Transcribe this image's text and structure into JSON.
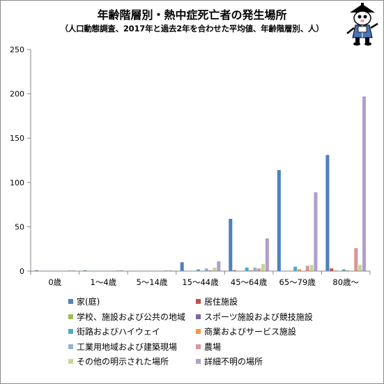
{
  "title": "年齢階層別・熱中症死亡者の発生場所",
  "subtitle": "（人口動態調査、2017年と過去2年を合わせた平均値、年齢階層別、人）",
  "chart_data": {
    "type": "bar",
    "categories": [
      "0歳",
      "1～4歳",
      "5～14歳",
      "15～44歳",
      "45～64歳",
      "65～79歳",
      "80歳～"
    ],
    "ylim": [
      0,
      250
    ],
    "yticks": [
      0,
      50,
      100,
      150,
      200,
      250
    ],
    "grid": false,
    "legend_position": "bottom",
    "series": [
      {
        "name": "家(庭)",
        "color": "#4f81bd",
        "values": [
          1,
          1,
          0.3,
          10,
          59,
          114,
          131
        ]
      },
      {
        "name": "居住施設",
        "color": "#c0504d",
        "values": [
          0,
          0,
          0,
          0.3,
          1,
          0.3,
          3
        ]
      },
      {
        "name": "学校、施設および公共の地域",
        "color": "#9bbb59",
        "values": [
          0,
          0,
          0,
          0,
          0.3,
          0.3,
          0.7
        ]
      },
      {
        "name": "スポーツ施設および競技施設",
        "color": "#8064a2",
        "values": [
          0,
          0,
          0,
          0.3,
          0,
          0,
          0
        ]
      },
      {
        "name": "街路およびハイウェイ",
        "color": "#4bacc6",
        "values": [
          0,
          0,
          0.3,
          2,
          4,
          5,
          2
        ]
      },
      {
        "name": "商業およびサービス施設",
        "color": "#f79646",
        "values": [
          0,
          0,
          0,
          0.3,
          1,
          2,
          0.7
        ]
      },
      {
        "name": "工業用地域および建築現場",
        "color": "#95b3d7",
        "values": [
          0.3,
          0,
          0,
          3,
          4,
          0.3,
          0
        ]
      },
      {
        "name": "農場",
        "color": "#da9694",
        "values": [
          0,
          0,
          0,
          1,
          3,
          6,
          26
        ]
      },
      {
        "name": "その他の明示された場所",
        "color": "#c4d79b",
        "values": [
          1,
          1,
          1,
          4,
          8,
          7,
          7
        ]
      },
      {
        "name": "詳細不明の場所",
        "color": "#b1a0c7",
        "values": [
          0.7,
          1,
          0.7,
          11,
          37,
          89,
          197
        ]
      }
    ]
  }
}
